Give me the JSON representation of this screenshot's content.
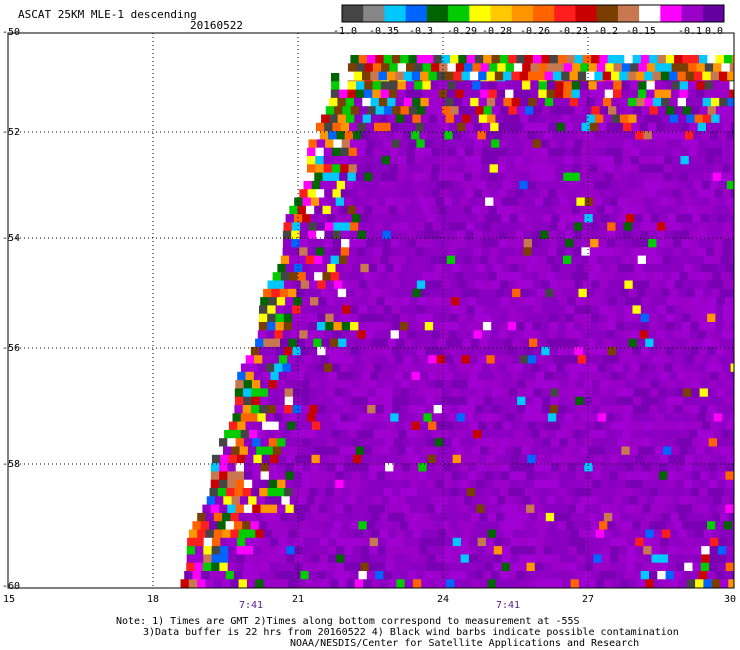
{
  "header": {
    "title": "ASCAT 25KM MLE-1 descending",
    "date": "20160522"
  },
  "colorbar": {
    "colors": [
      "#454545",
      "#868686",
      "#00c8ff",
      "#0064ff",
      "#006400",
      "#00cc00",
      "#ffff00",
      "#ffc800",
      "#ff9600",
      "#ff6400",
      "#ff1e1e",
      "#c80000",
      "#7a3f00",
      "#c87850",
      "#ffffff",
      "#ff00ff",
      "#9a00c8",
      "#6400a0"
    ],
    "labels": [
      "-1.0",
      "-0.35",
      "-0.3",
      "-0.29",
      "-0.28",
      "-0.26",
      "-0.23",
      "-0.2",
      "-0.15",
      "-0.1",
      "0.0"
    ]
  },
  "axes": {
    "y_ticks": [
      "-50",
      "-52",
      "-54",
      "-56",
      "-58",
      "-60"
    ],
    "x_ticks": [
      "15",
      "18",
      "21",
      "24",
      "27",
      "30"
    ],
    "time_marks": [
      "7:41",
      "7:41"
    ]
  },
  "map": {
    "lat_range": [
      -60,
      -50
    ],
    "lon_range": [
      15,
      30
    ],
    "field": "ASCAT MLE-1 normalized values; dominant purple (~0.0) with noisy multicolor edges"
  },
  "notes": {
    "line1": "Note: 1) Times are GMT 2)Times along bottom correspond to measurement at -55S",
    "line2": "3)Data buffer is 22 hrs from 20160522 4) Black wind barbs indicate possible contamination",
    "line3": "NOAA/NESDIS/Center for Satellite Applications and Research"
  }
}
